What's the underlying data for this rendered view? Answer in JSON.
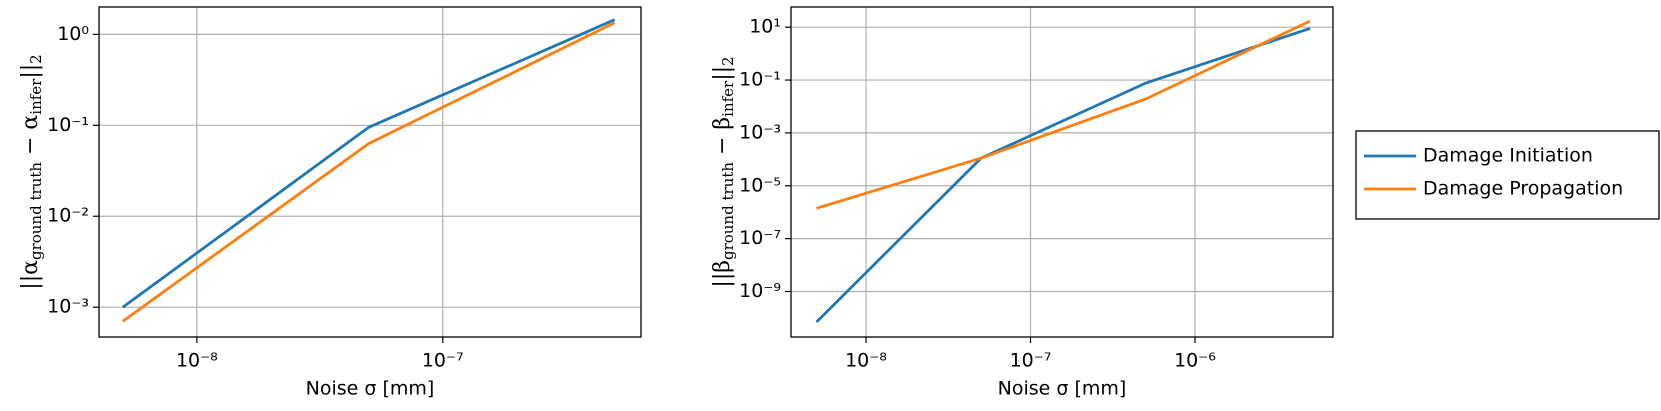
{
  "chart_data": [
    {
      "type": "line",
      "xlabel": "Noise σ [mm]",
      "ylabel": [
        "||α",
        "ground truth",
        " − α",
        "infer",
        "||",
        "2"
      ],
      "log_x": true,
      "log_y": true,
      "grid": true,
      "x": [
        5e-09,
        5e-08,
        5e-07
      ],
      "series": [
        {
          "color": "#1f77b4",
          "values": [
            0.001,
            0.095,
            1.45
          ]
        },
        {
          "color": "#ff7f0e",
          "values": [
            0.0007,
            0.063,
            1.34
          ]
        }
      ],
      "xlim": [
        4e-09,
        6.4e-07
      ],
      "ylim": [
        0.00047,
        2.0
      ],
      "xticks": [
        {
          "value": 1e-08,
          "label": "10⁻⁸"
        },
        {
          "value": 1e-07,
          "label": "10⁻⁷"
        }
      ],
      "yticks": [
        {
          "value": 0.001,
          "label": "10⁻³"
        },
        {
          "value": 0.01,
          "label": "10⁻²"
        },
        {
          "value": 0.1,
          "label": "10⁻¹"
        },
        {
          "value": 1,
          "label": "10⁰"
        }
      ]
    },
    {
      "type": "line",
      "xlabel": "Noise σ [mm]",
      "ylabel": [
        "||β",
        "ground truth",
        " − β",
        "infer",
        "||",
        "2"
      ],
      "log_x": true,
      "log_y": true,
      "grid": true,
      "legend": "right-outside",
      "x": [
        5e-09,
        5e-08,
        5e-07,
        5e-06
      ],
      "series": [
        {
          "name": "Damage Initiation",
          "color": "#1f77b4",
          "values": [
            7e-11,
            0.00011,
            0.076,
            9
          ]
        },
        {
          "name": "Damage Propagation",
          "color": "#ff7f0e",
          "values": [
            1.4e-06,
            0.00011,
            0.019,
            17
          ]
        }
      ],
      "xlim": [
        3.5e-09,
        6.9e-06
      ],
      "ylim": [
        1.9e-11,
        58
      ],
      "xticks": [
        {
          "value": 1e-08,
          "label": "10⁻⁸"
        },
        {
          "value": 1e-07,
          "label": "10⁻⁷"
        },
        {
          "value": 1e-06,
          "label": "10⁻⁶"
        }
      ],
      "yticks": [
        {
          "value": 1e-09,
          "label": "10⁻⁹"
        },
        {
          "value": 1e-07,
          "label": "10⁻⁷"
        },
        {
          "value": 1e-05,
          "label": "10⁻⁵"
        },
        {
          "value": 0.001,
          "label": "10⁻³"
        },
        {
          "value": 0.1,
          "label": "10⁻¹"
        },
        {
          "value": 10,
          "label": "10¹"
        }
      ]
    }
  ]
}
